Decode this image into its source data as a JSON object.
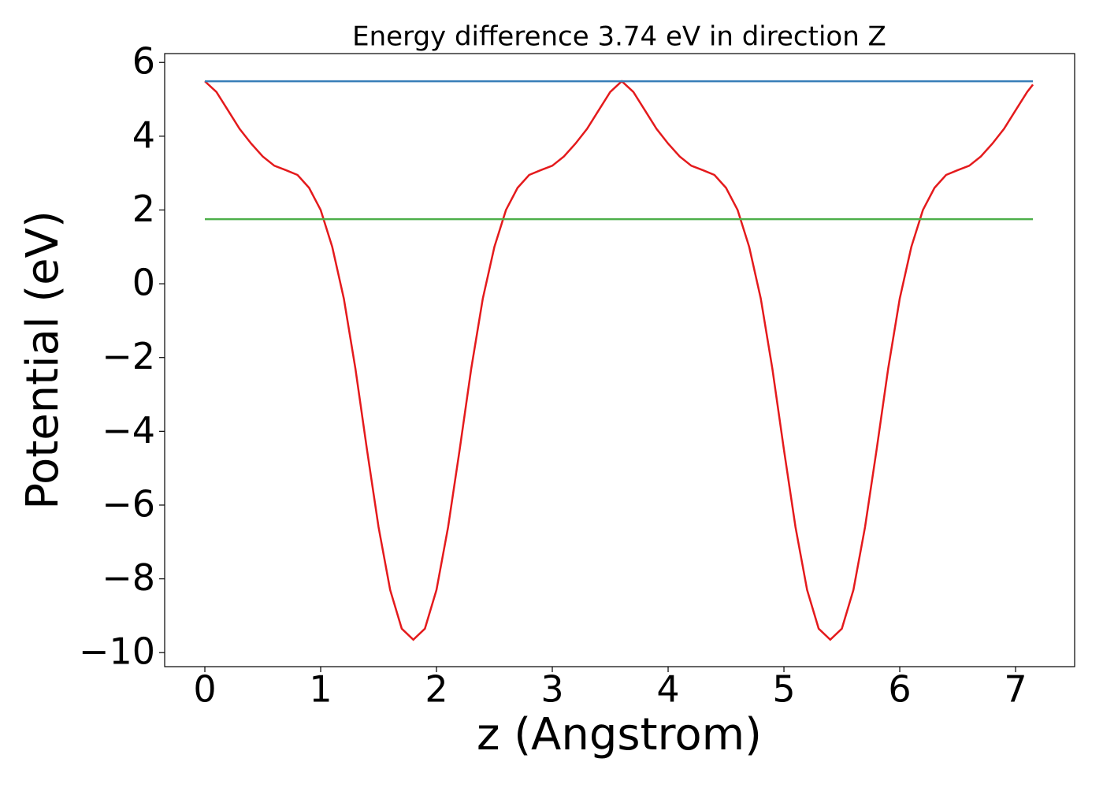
{
  "chart_data": {
    "type": "line",
    "title": "Energy difference 3.74 eV in direction Z",
    "xlabel": "z (Angstrom)",
    "ylabel": "Potential (eV)",
    "xlim": [
      -0.347,
      7.51
    ],
    "ylim": [
      -10.38,
      6.24
    ],
    "xticks": [
      0,
      1,
      2,
      3,
      4,
      5,
      6,
      7
    ],
    "yticks": [
      {
        "value": -10,
        "label": "−10"
      },
      {
        "value": -8,
        "label": "−8"
      },
      {
        "value": -6,
        "label": "−6"
      },
      {
        "value": -4,
        "label": "−4"
      },
      {
        "value": -2,
        "label": "−2"
      },
      0,
      2,
      4,
      6
    ],
    "series": [
      {
        "color": "#e41a1c",
        "x": [
          0,
          0.1,
          0.2,
          0.3,
          0.4,
          0.5,
          0.6,
          0.7,
          0.8,
          0.9,
          1.0,
          1.1,
          1.2,
          1.3,
          1.4,
          1.5,
          1.6,
          1.7,
          1.8,
          1.9,
          2.0,
          2.1,
          2.2,
          2.3,
          2.4,
          2.5,
          2.6,
          2.7,
          2.8,
          2.9,
          3.0,
          3.1,
          3.2,
          3.3,
          3.4,
          3.5,
          3.6,
          3.7,
          3.8,
          3.9,
          4.0,
          4.1,
          4.2,
          4.3,
          4.4,
          4.5,
          4.6,
          4.7,
          4.8,
          4.9,
          5.0,
          5.1,
          5.2,
          5.3,
          5.4,
          5.5,
          5.6,
          5.7,
          5.8,
          5.9,
          6.0,
          6.1,
          6.2,
          6.3,
          6.4,
          6.5,
          6.6,
          6.7,
          6.8,
          6.9,
          7.0,
          7.1,
          7.15
        ],
        "values": [
          5.49,
          5.2,
          4.7,
          4.2,
          3.8,
          3.45,
          3.2,
          3.08,
          2.95,
          2.6,
          2.0,
          1.0,
          -0.4,
          -2.3,
          -4.5,
          -6.6,
          -8.3,
          -9.35,
          -9.65,
          -9.35,
          -8.3,
          -6.6,
          -4.5,
          -2.3,
          -0.4,
          1.0,
          2.0,
          2.6,
          2.95,
          3.08,
          3.2,
          3.45,
          3.8,
          4.2,
          4.7,
          5.2,
          5.49,
          5.2,
          4.7,
          4.2,
          3.8,
          3.45,
          3.2,
          3.08,
          2.95,
          2.6,
          2.0,
          1.0,
          -0.4,
          -2.3,
          -4.5,
          -6.6,
          -8.3,
          -9.35,
          -9.65,
          -9.35,
          -8.3,
          -6.6,
          -4.5,
          -2.3,
          -0.4,
          1.0,
          2.0,
          2.6,
          2.95,
          3.08,
          3.2,
          3.45,
          3.8,
          4.2,
          4.7,
          5.2,
          5.4
        ]
      },
      {
        "color": "#377eb8",
        "x": [
          0,
          7.15
        ],
        "values": [
          5.49,
          5.49
        ]
      },
      {
        "color": "#4daf4a",
        "x": [
          0,
          7.15
        ],
        "values": [
          1.75,
          1.75
        ]
      }
    ]
  }
}
